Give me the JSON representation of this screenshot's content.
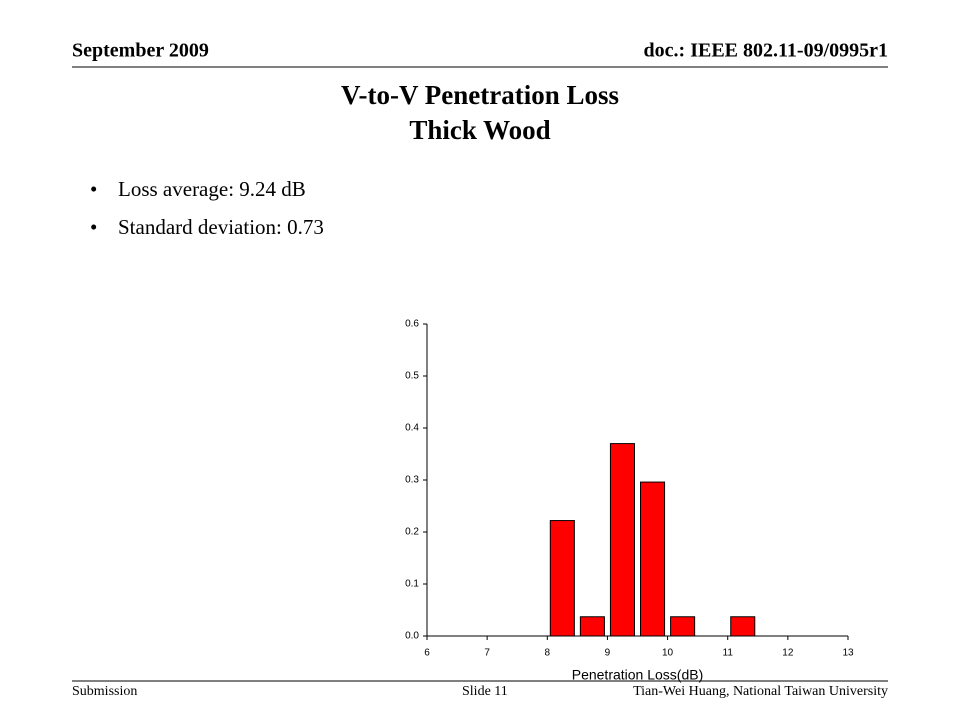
{
  "header": {
    "date": "September 2009",
    "doc": "doc.: IEEE 802.11-09/0995r1"
  },
  "title": [
    "V-to-V Penetration Loss",
    "Thick Wood"
  ],
  "bullets": [
    "Loss average: 9.24 dB",
    "Standard deviation: 0.73"
  ],
  "footer": {
    "left": "Submission",
    "center": "Slide 11",
    "right": "Tian-Wei Huang, National Taiwan University"
  },
  "chart_data": {
    "type": "histogram",
    "x_label": "Penetration Loss(dB)",
    "bins": [
      8,
      8.5,
      9,
      9.5,
      10,
      10.5,
      11,
      11.5
    ],
    "values": [
      0.222,
      0.037,
      0.37,
      0.296,
      0.037,
      0,
      0.037
    ],
    "color": "#ff0000",
    "xlim": [
      6,
      13
    ],
    "xticks": [
      6,
      7,
      8,
      9,
      10,
      11,
      12,
      13
    ],
    "ylim": [
      0,
      0.6
    ],
    "yticks": [
      {
        "value": 0,
        "label": "0.0"
      },
      0.1,
      0.2,
      0.3,
      0.4,
      0.5,
      0.6
    ]
  }
}
